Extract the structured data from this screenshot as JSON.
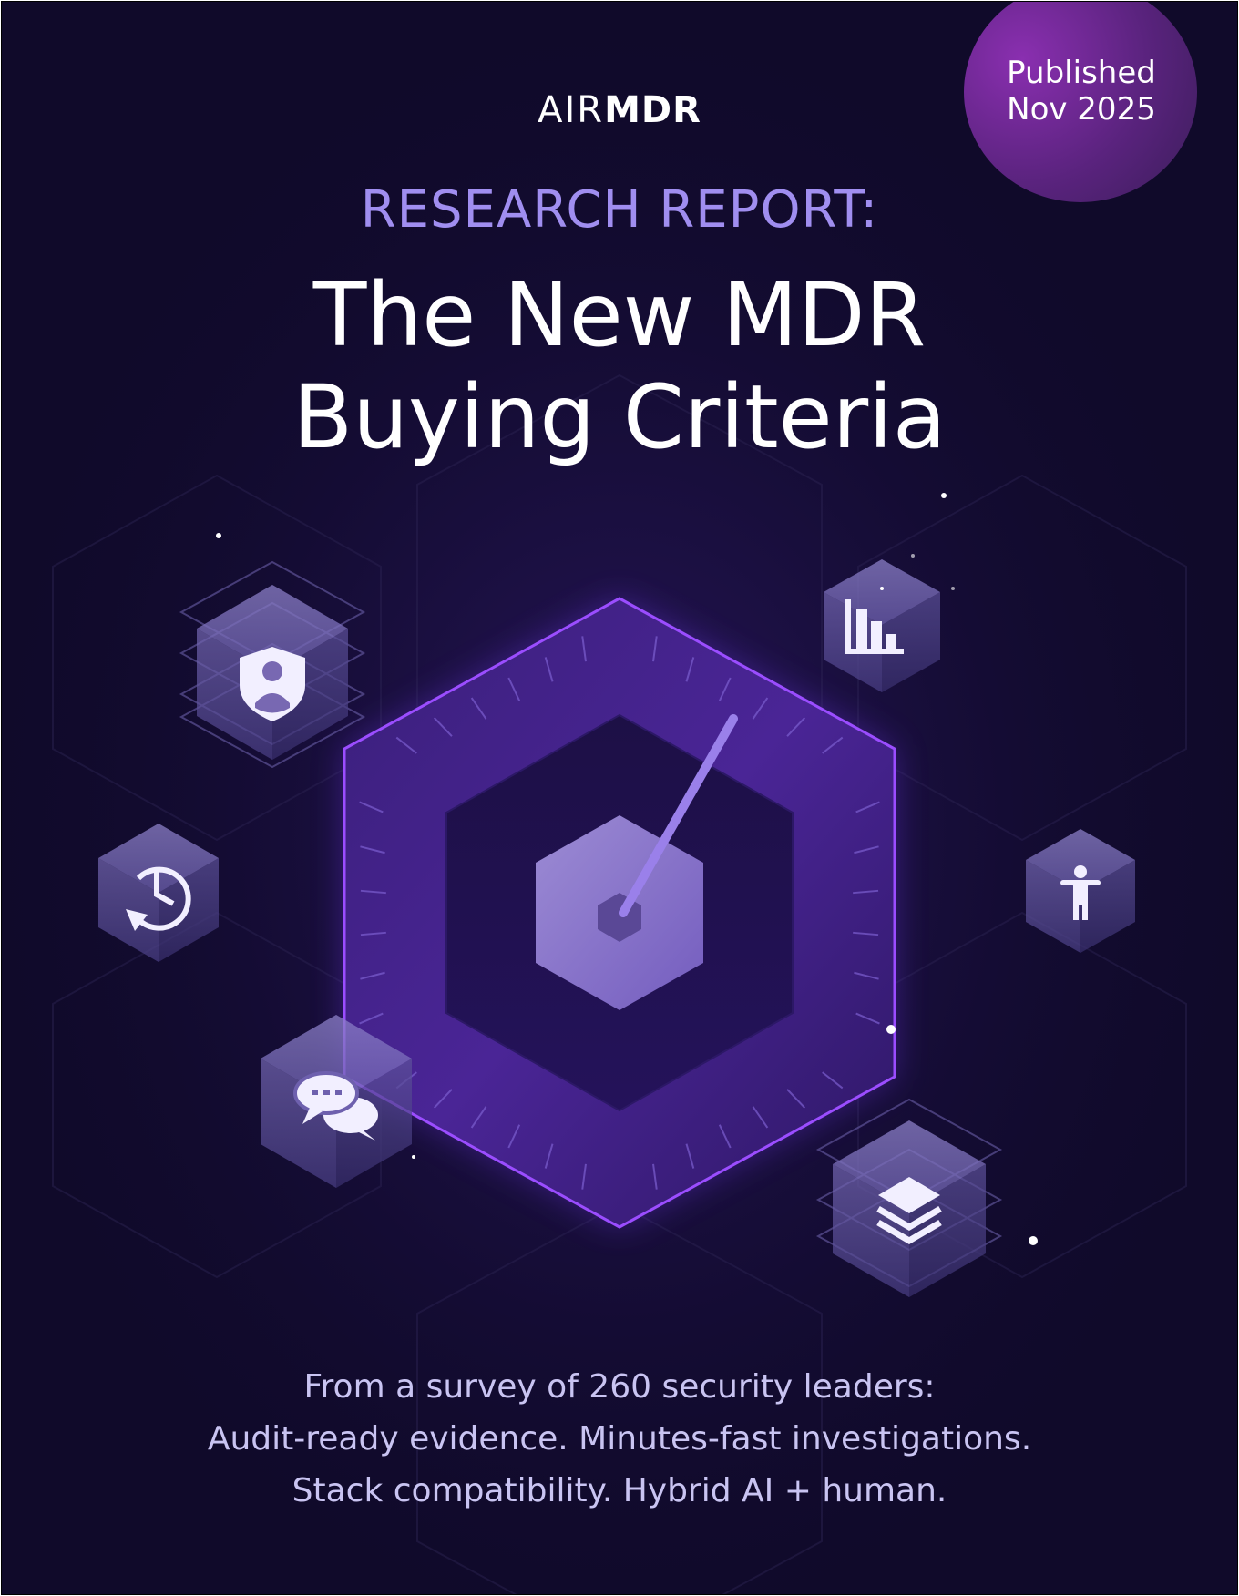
{
  "badge": {
    "line1": "Published",
    "line2": "Nov 2025"
  },
  "logo": {
    "part1": "AIR",
    "part2": "MDR"
  },
  "header": {
    "kicker": "RESEARCH REPORT:",
    "title_line1": "The New MDR",
    "title_line2": "Buying Criteria"
  },
  "summary": {
    "line1": "From a survey of 260 security leaders:",
    "line2": "Audit-ready evidence. Minutes-fast investigations.",
    "line3": "Stack compatibility. Hybrid AI + human."
  },
  "colors": {
    "background": "#100a2a",
    "accent": "#a08ef0",
    "glow": "#9b4dff",
    "badge": "#7a2aa8"
  },
  "icons": [
    "shield-user-icon",
    "bar-chart-icon",
    "clock-refresh-icon",
    "person-icon",
    "chat-bubbles-icon",
    "layers-icon",
    "gauge-icon"
  ]
}
